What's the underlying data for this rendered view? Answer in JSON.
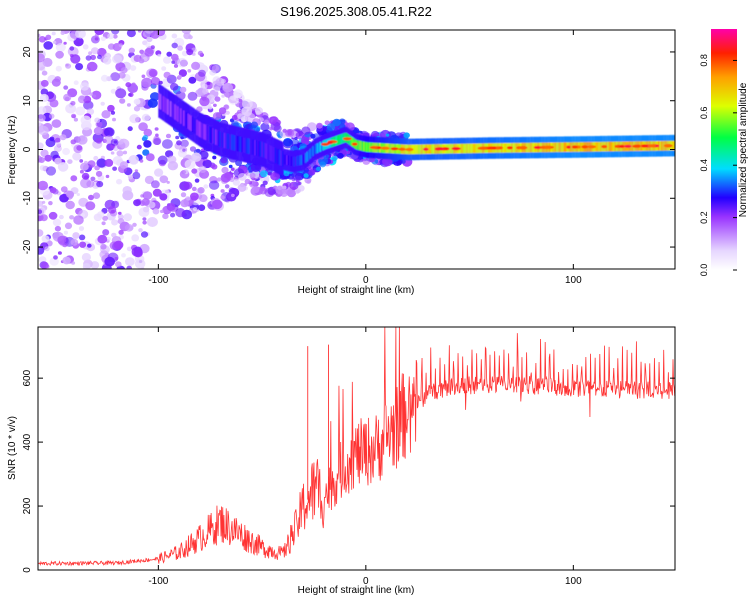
{
  "title": "S196.2025.308.05.41.R22",
  "chart_data": [
    {
      "type": "heatmap",
      "title": "S196.2025.308.05.41.R22",
      "xlabel": "Height of straight line (km)",
      "ylabel": "Frequency (Hz)",
      "xlim": [
        -158,
        149
      ],
      "ylim": [
        -24.5,
        24.5
      ],
      "xticks": [
        -100,
        0,
        100
      ],
      "yticks": [
        -20,
        -10,
        0,
        10,
        20
      ],
      "colorbar": {
        "label": "Normalized spectral amplitude",
        "range": [
          0.0,
          0.92
        ],
        "ticks": [
          0.0,
          0.2,
          0.4,
          0.6,
          0.8
        ]
      },
      "ridge": {
        "description_free": true,
        "center_freq_hz": [
          [
            -100,
            10
          ],
          [
            -90,
            7
          ],
          [
            -80,
            4
          ],
          [
            -70,
            2
          ],
          [
            -60,
            1
          ],
          [
            -50,
            0
          ],
          [
            -40,
            -2
          ],
          [
            -35,
            -2.5
          ],
          [
            -30,
            -2
          ],
          [
            -25,
            0
          ],
          [
            -20,
            1
          ],
          [
            -10,
            2.5
          ],
          [
            -5,
            1
          ],
          [
            0,
            0.5
          ],
          [
            20,
            0
          ],
          [
            60,
            0.3
          ],
          [
            100,
            0.5
          ],
          [
            149,
            0.8
          ]
        ],
        "amplitude": [
          [
            -158,
            0.12
          ],
          [
            -120,
            0.18
          ],
          [
            -100,
            0.22
          ],
          [
            -80,
            0.26
          ],
          [
            -60,
            0.3
          ],
          [
            -40,
            0.28
          ],
          [
            -25,
            0.35
          ],
          [
            -10,
            0.55
          ],
          [
            0,
            0.6
          ],
          [
            20,
            0.7
          ],
          [
            60,
            0.72
          ],
          [
            100,
            0.75
          ],
          [
            149,
            0.75
          ]
        ]
      }
    },
    {
      "type": "line",
      "title": "",
      "xlabel": "Height of straight line (km)",
      "ylabel": "SNR (10 * v/v)",
      "xlim": [
        -158,
        149
      ],
      "ylim": [
        0,
        760
      ],
      "xticks": [
        -100,
        0,
        100
      ],
      "yticks": [
        0,
        200,
        400,
        600
      ],
      "color": "#ff3333",
      "trend": {
        "x": [
          -158,
          -120,
          -100,
          -90,
          -80,
          -70,
          -60,
          -50,
          -40,
          -35,
          -30,
          -25,
          -20,
          -15,
          -10,
          -5,
          0,
          5,
          10,
          15,
          20,
          25,
          30,
          40,
          60,
          80,
          100,
          120,
          149
        ],
        "y": [
          20,
          22,
          35,
          55,
          100,
          150,
          110,
          70,
          50,
          110,
          200,
          250,
          230,
          280,
          330,
          360,
          370,
          380,
          420,
          450,
          500,
          520,
          550,
          575,
          580,
          578,
          570,
          565,
          560
        ]
      },
      "spike_spacing_km": 2.2,
      "spike_height": 100
    }
  ]
}
